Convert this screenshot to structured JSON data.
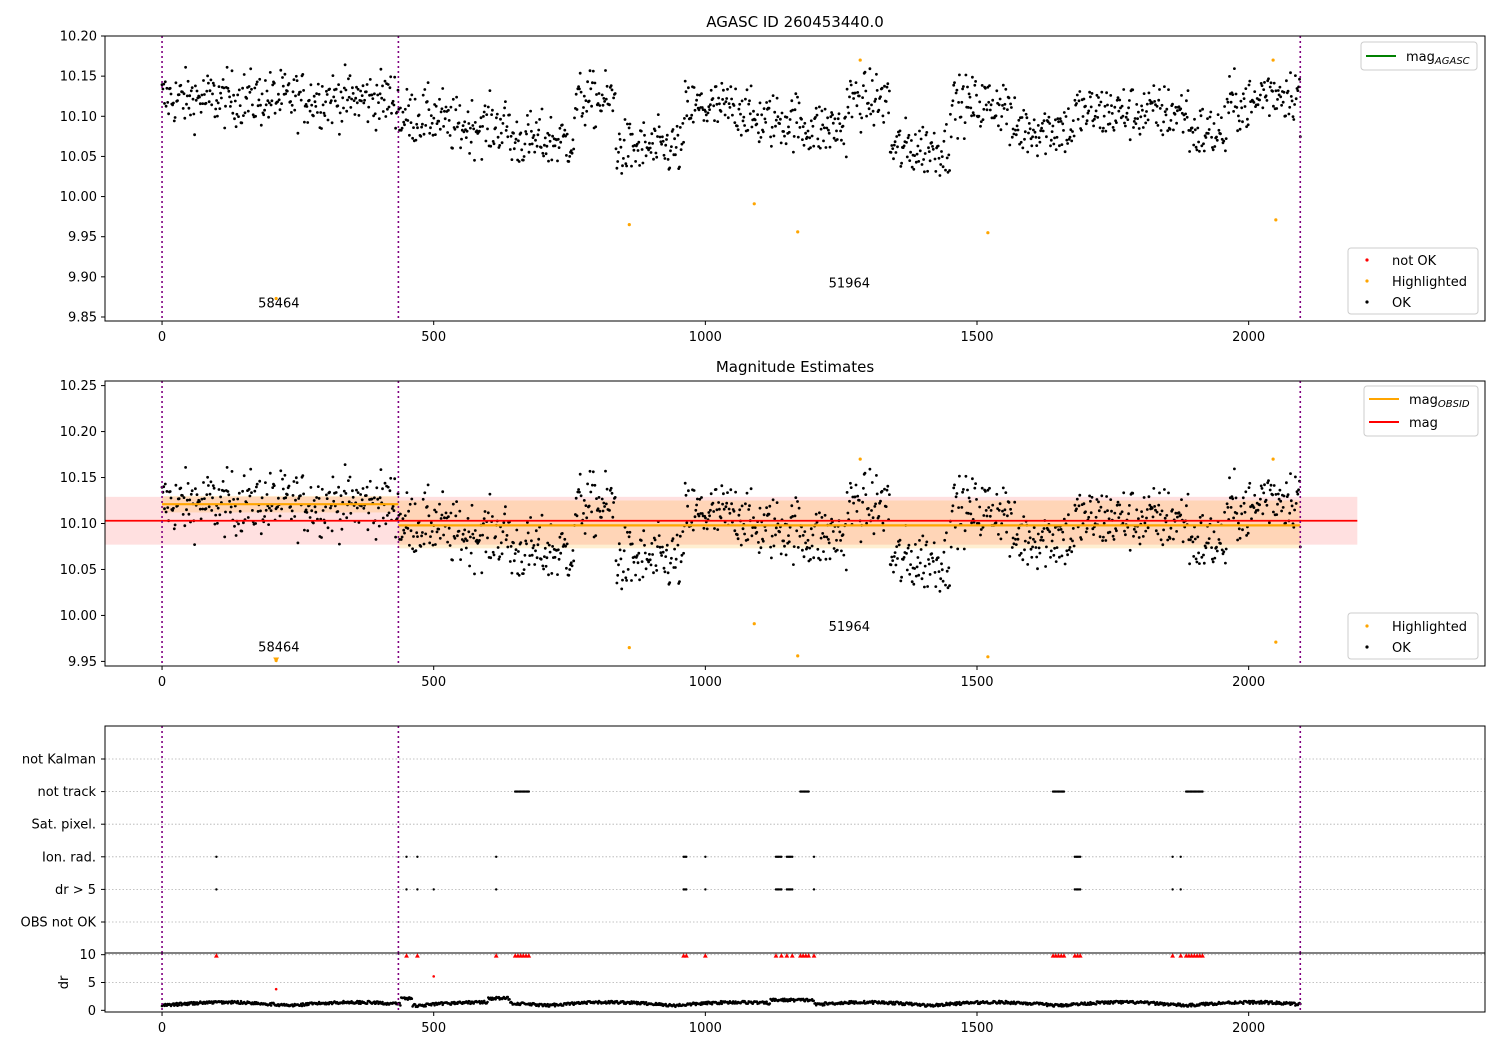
{
  "figure": {
    "title": "AGASC ID 260453440.0"
  },
  "chart_data": [
    {
      "type": "scatter",
      "panel": "top",
      "title": "",
      "xlabel": "",
      "ylabel": "",
      "xlim": [
        -105,
        2435
      ],
      "ylim": [
        9.845,
        10.2
      ],
      "xticks": [
        0,
        500,
        1000,
        1500,
        2000
      ],
      "yticks": [
        9.85,
        9.9,
        9.95,
        10.0,
        10.05,
        10.1,
        10.15,
        10.2
      ],
      "ytick_labels": [
        "9.85",
        "9.90",
        "9.95",
        "10.00",
        "10.05",
        "10.10",
        "10.15",
        "10.20"
      ],
      "vlines": [
        0,
        435,
        2095
      ],
      "obsid_labels": [
        {
          "text": "58464",
          "x": 215,
          "y": 9.862
        },
        {
          "text": "51964",
          "x": 1265,
          "y": 9.887
        }
      ],
      "legend_upper": {
        "position": "upper right",
        "entries": [
          {
            "name": "mag",
            "sub": "AGASC",
            "color": "#008000",
            "kind": "line"
          }
        ]
      },
      "legend_lower": {
        "position": "lower right",
        "entries": [
          {
            "name": "not OK",
            "color": "#ff0000",
            "kind": "dot"
          },
          {
            "name": "Highlighted",
            "color": "#ffa500",
            "kind": "dot"
          },
          {
            "name": "OK",
            "color": "#000000",
            "kind": "dot"
          }
        ]
      },
      "highlighted": {
        "x": [
          210,
          860,
          1090,
          1170,
          1285,
          1520,
          2045,
          2050
        ],
        "y": [
          9.873,
          9.965,
          9.991,
          9.956,
          10.17,
          9.955,
          10.17,
          9.971
        ]
      },
      "ok_series": {
        "x_start": 0,
        "x_end": 2095,
        "n": 1400,
        "note": "dense per-frame magnitudes, ~10.03–10.17"
      }
    },
    {
      "type": "scatter",
      "panel": "middle",
      "title": "Magnitude Estimates",
      "xlim": [
        -105,
        2435
      ],
      "ylim": [
        9.945,
        10.255
      ],
      "xticks": [
        0,
        500,
        1000,
        1500,
        2000
      ],
      "yticks": [
        9.95,
        10.0,
        10.05,
        10.1,
        10.15,
        10.2,
        10.25
      ],
      "ytick_labels": [
        "9.95",
        "10.00",
        "10.05",
        "10.10",
        "10.15",
        "10.20",
        "10.25"
      ],
      "vlines": [
        0,
        435,
        2095
      ],
      "obsid_labels": [
        {
          "text": "58464",
          "x": 215,
          "y": 9.961
        },
        {
          "text": "51964",
          "x": 1265,
          "y": 9.983
        }
      ],
      "mag": 10.103,
      "mag_band": [
        10.077,
        10.129
      ],
      "mag_xrange": [
        -105,
        2200
      ],
      "mag_obsid": [
        {
          "x0": 0,
          "x1": 435,
          "value": 10.121,
          "band": [
            10.112,
            10.13
          ]
        },
        {
          "x0": 435,
          "x1": 2095,
          "value": 10.098,
          "band": [
            10.073,
            10.125
          ]
        }
      ],
      "legend_upper": {
        "position": "upper right",
        "entries": [
          {
            "name": "mag",
            "sub": "OBSID",
            "color": "#ffa500",
            "kind": "line"
          },
          {
            "name": "mag",
            "sub": "",
            "color": "#ff0000",
            "kind": "line"
          }
        ]
      },
      "legend_lower": {
        "position": "lower right",
        "entries": [
          {
            "name": "Highlighted",
            "color": "#ffa500",
            "kind": "dot"
          },
          {
            "name": "OK",
            "color": "#000000",
            "kind": "dot"
          }
        ]
      },
      "highlighted": {
        "x": [
          210,
          860,
          1090,
          1170,
          1285,
          1520,
          2045,
          2050
        ],
        "y": [
          9.951,
          9.965,
          9.991,
          9.956,
          10.17,
          9.955,
          10.17,
          9.971
        ]
      }
    },
    {
      "type": "scatter",
      "panel": "flags",
      "xlim": [
        -105,
        2435
      ],
      "rows": [
        "not Kalman",
        "not track",
        "Sat. pixel.",
        "Ion. rad.",
        "dr > 5",
        "OBS not OK"
      ],
      "vlines": [
        0,
        435,
        2095
      ],
      "flags": {
        "not track": [
          [
            650,
            675
          ],
          [
            1175,
            1190
          ],
          [
            1640,
            1660
          ],
          [
            1885,
            1915
          ]
        ],
        "Ion. rad.": [
          [
            100,
            100
          ],
          [
            450,
            450
          ],
          [
            470,
            470
          ],
          [
            615,
            615
          ],
          [
            960,
            965
          ],
          [
            1000,
            1000
          ],
          [
            1130,
            1140
          ],
          [
            1150,
            1160
          ],
          [
            1200,
            1200
          ],
          [
            1680,
            1690
          ],
          [
            1860,
            1860
          ],
          [
            1875,
            1875
          ]
        ],
        "dr > 5": [
          [
            100,
            100
          ],
          [
            450,
            450
          ],
          [
            470,
            470
          ],
          [
            500,
            500
          ],
          [
            615,
            615
          ],
          [
            960,
            965
          ],
          [
            1000,
            1000
          ],
          [
            1130,
            1140
          ],
          [
            1150,
            1160
          ],
          [
            1200,
            1200
          ],
          [
            1680,
            1690
          ],
          [
            1860,
            1860
          ],
          [
            1875,
            1875
          ]
        ]
      }
    },
    {
      "type": "scatter",
      "panel": "dr",
      "xlim": [
        -105,
        2435
      ],
      "ylim": [
        -0.3,
        10.3
      ],
      "xticks": [
        0,
        500,
        1000,
        1500,
        2000
      ],
      "yticks": [
        0,
        5,
        10
      ],
      "ytick_labels": [
        "0",
        "5",
        "10"
      ],
      "ylabel": "dr",
      "vlines": [
        0,
        435,
        2095
      ],
      "capped_x": [
        100,
        450,
        470,
        615,
        650,
        655,
        660,
        665,
        670,
        675,
        960,
        965,
        1000,
        1130,
        1140,
        1150,
        1160,
        1175,
        1180,
        1185,
        1190,
        1200,
        1640,
        1645,
        1650,
        1655,
        1660,
        1680,
        1685,
        1690,
        1860,
        1875,
        1885,
        1890,
        1895,
        1900,
        1905,
        1910,
        1915
      ],
      "extra_red": {
        "x": [
          210,
          500
        ],
        "y": [
          3.8,
          6.1
        ]
      }
    }
  ]
}
